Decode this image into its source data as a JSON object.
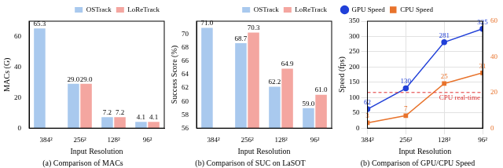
{
  "chart_data": [
    {
      "type": "bar",
      "title": "(a) Comparison of MACs",
      "x_label": "Input Resolution",
      "y_label": "MACs (G)",
      "categories": [
        "384²",
        "256²",
        "128²",
        "96²"
      ],
      "series": [
        {
          "name": "OSTrack",
          "color": "#a9c9ee",
          "values": [
            65.3,
            29.0,
            7.2,
            4.1
          ],
          "value_labels": [
            "65.3",
            "29.0",
            "7.2",
            "4.1"
          ]
        },
        {
          "name": "LoReTrack",
          "color": "#f4a6a0",
          "values": [
            null,
            29.0,
            7.2,
            4.1
          ],
          "value_labels": [
            null,
            "29.0",
            "7.2",
            "4.1"
          ]
        }
      ],
      "ylim": [
        0,
        70
      ],
      "yticks": [
        0,
        20,
        40,
        60
      ],
      "grid": false,
      "legend": "upper right",
      "data_labels": true
    },
    {
      "type": "bar",
      "title": "(b) Comparison of SUC on LaSOT",
      "x_label": "Input Resolution",
      "y_label": "Success Score (%)",
      "categories": [
        "384²",
        "256²",
        "128²",
        "96²"
      ],
      "series": [
        {
          "name": "OSTrack",
          "color": "#a9c9ee",
          "values": [
            71.0,
            68.7,
            62.2,
            59.0
          ],
          "value_labels": [
            "71.0",
            "68.7",
            "62.2",
            "59.0"
          ]
        },
        {
          "name": "LoReTrack",
          "color": "#f4a6a0",
          "values": [
            null,
            70.3,
            64.9,
            61.0
          ],
          "value_labels": [
            null,
            "70.3",
            "64.9",
            "61.0"
          ]
        }
      ],
      "ylim": [
        56,
        72
      ],
      "yticks": [
        56,
        58,
        60,
        62,
        64,
        66,
        68,
        70
      ],
      "grid": false,
      "legend": "upper right",
      "data_labels": true
    },
    {
      "type": "line",
      "title": "(b) Comparison of GPU/CPU Speed",
      "x_label": "Input Resolution",
      "y_label": "Speed (fps)",
      "categories": [
        "384²",
        "256²",
        "128²",
        "96²"
      ],
      "series": [
        {
          "name": "GPU Speed",
          "color": "#2140d8",
          "marker": "circle",
          "values": [
            62,
            130,
            281,
            325
          ]
        },
        {
          "name": "CPU Speed",
          "color": "#e8732c",
          "marker": "square",
          "axis": "y2",
          "values": [
            3,
            7,
            25,
            31
          ]
        }
      ],
      "ylim": [
        0,
        350
      ],
      "yticks": [
        0,
        50,
        100,
        150,
        200,
        250,
        300,
        350
      ],
      "y2lim": [
        0,
        60
      ],
      "y2ticks": [
        0,
        20,
        40,
        60
      ],
      "grid": true,
      "legend": "upper left",
      "data_labels": true,
      "annotations": [
        {
          "text": "CPU real-time",
          "y": 20,
          "axis": "y2",
          "color": "#e03030",
          "line_style": "dashed"
        }
      ]
    }
  ]
}
